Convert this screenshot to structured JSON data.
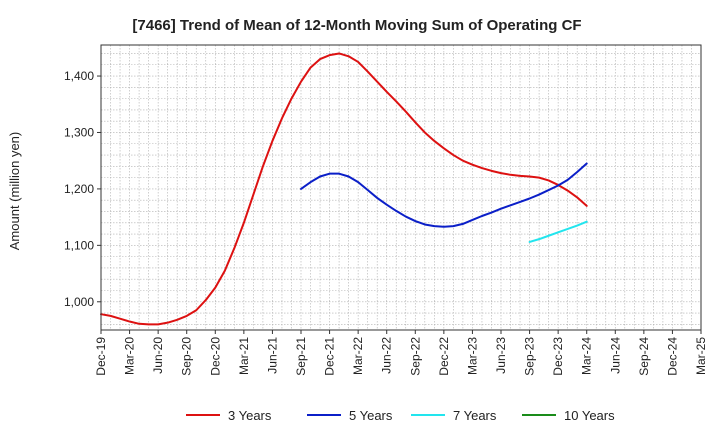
{
  "chart_data": {
    "type": "line",
    "title": "[7466]  Trend of Mean of 12-Month Moving Sum of Operating CF",
    "xlabel": "",
    "ylabel": "Amount (million yen)",
    "ylim": [
      950,
      1455
    ],
    "yticks": [
      1000,
      1100,
      1200,
      1300,
      1400
    ],
    "ytick_labels": [
      "1,000",
      "1,100",
      "1,200",
      "1,300",
      "1,400"
    ],
    "xticks": [
      "Dec-19",
      "Mar-20",
      "Jun-20",
      "Sep-20",
      "Dec-20",
      "Mar-21",
      "Jun-21",
      "Sep-21",
      "Dec-21",
      "Mar-22",
      "Jun-22",
      "Sep-22",
      "Dec-22",
      "Mar-23",
      "Jun-23",
      "Sep-23",
      "Dec-23",
      "Mar-24",
      "Jun-24",
      "Sep-24",
      "Dec-24",
      "Mar-25"
    ],
    "grid": true,
    "legend_position": "bottom",
    "series": [
      {
        "name": "3 Years",
        "color": "#dd1111",
        "points": [
          [
            "Dec-19",
            978
          ],
          [
            "Jan-20",
            975
          ],
          [
            "Feb-20",
            970
          ],
          [
            "Mar-20",
            965
          ],
          [
            "Apr-20",
            961
          ],
          [
            "May-20",
            960
          ],
          [
            "Jun-20",
            960
          ],
          [
            "Jul-20",
            963
          ],
          [
            "Aug-20",
            968
          ],
          [
            "Sep-20",
            975
          ],
          [
            "Oct-20",
            985
          ],
          [
            "Nov-20",
            1003
          ],
          [
            "Dec-20",
            1025
          ],
          [
            "Jan-21",
            1055
          ],
          [
            "Feb-21",
            1095
          ],
          [
            "Mar-21",
            1140
          ],
          [
            "Apr-21",
            1190
          ],
          [
            "May-21",
            1240
          ],
          [
            "Jun-21",
            1285
          ],
          [
            "Jul-21",
            1325
          ],
          [
            "Aug-21",
            1360
          ],
          [
            "Sep-21",
            1390
          ],
          [
            "Oct-21",
            1415
          ],
          [
            "Nov-21",
            1430
          ],
          [
            "Dec-21",
            1437
          ],
          [
            "Jan-22",
            1440
          ],
          [
            "Feb-22",
            1435
          ],
          [
            "Mar-22",
            1425
          ],
          [
            "Apr-22",
            1408
          ],
          [
            "May-22",
            1390
          ],
          [
            "Jun-22",
            1372
          ],
          [
            "Jul-22",
            1355
          ],
          [
            "Aug-22",
            1337
          ],
          [
            "Sep-22",
            1318
          ],
          [
            "Oct-22",
            1300
          ],
          [
            "Nov-22",
            1285
          ],
          [
            "Dec-22",
            1272
          ],
          [
            "Jan-23",
            1260
          ],
          [
            "Feb-23",
            1250
          ],
          [
            "Mar-23",
            1243
          ],
          [
            "Apr-23",
            1237
          ],
          [
            "May-23",
            1232
          ],
          [
            "Jun-23",
            1228
          ],
          [
            "Jul-23",
            1225
          ],
          [
            "Aug-23",
            1223
          ],
          [
            "Sep-23",
            1222
          ],
          [
            "Oct-23",
            1220
          ],
          [
            "Nov-23",
            1215
          ],
          [
            "Dec-23",
            1207
          ],
          [
            "Jan-24",
            1197
          ],
          [
            "Feb-24",
            1185
          ],
          [
            "Mar-24",
            1170
          ]
        ]
      },
      {
        "name": "5 Years",
        "color": "#0b1fc8",
        "points": [
          [
            "Sep-21",
            1200
          ],
          [
            "Oct-21",
            1212
          ],
          [
            "Nov-21",
            1222
          ],
          [
            "Dec-21",
            1227
          ],
          [
            "Jan-22",
            1227
          ],
          [
            "Feb-22",
            1222
          ],
          [
            "Mar-22",
            1212
          ],
          [
            "Apr-22",
            1198
          ],
          [
            "May-22",
            1184
          ],
          [
            "Jun-22",
            1172
          ],
          [
            "Jul-22",
            1161
          ],
          [
            "Aug-22",
            1151
          ],
          [
            "Sep-22",
            1143
          ],
          [
            "Oct-22",
            1137
          ],
          [
            "Nov-22",
            1134
          ],
          [
            "Dec-22",
            1133
          ],
          [
            "Jan-23",
            1134
          ],
          [
            "Feb-23",
            1138
          ],
          [
            "Mar-23",
            1145
          ],
          [
            "Apr-23",
            1152
          ],
          [
            "May-23",
            1158
          ],
          [
            "Jun-23",
            1165
          ],
          [
            "Jul-23",
            1171
          ],
          [
            "Aug-23",
            1177
          ],
          [
            "Sep-23",
            1183
          ],
          [
            "Oct-23",
            1190
          ],
          [
            "Nov-23",
            1198
          ],
          [
            "Dec-23",
            1206
          ],
          [
            "Jan-24",
            1216
          ],
          [
            "Feb-24",
            1230
          ],
          [
            "Mar-24",
            1245
          ]
        ]
      },
      {
        "name": "7 Years",
        "color": "#22e5ee",
        "points": [
          [
            "Sep-23",
            1106
          ],
          [
            "Oct-23",
            1111
          ],
          [
            "Nov-23",
            1117
          ],
          [
            "Dec-23",
            1123
          ],
          [
            "Jan-24",
            1129
          ],
          [
            "Feb-24",
            1135
          ],
          [
            "Mar-24",
            1142
          ]
        ]
      },
      {
        "name": "10 Years",
        "color": "#1a8c1a",
        "points": []
      }
    ]
  }
}
